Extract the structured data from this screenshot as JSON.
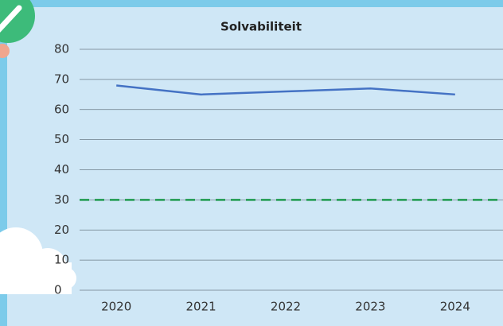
{
  "chart_data": {
    "type": "line",
    "title": "Solvabiliteit",
    "categories": [
      "2020",
      "2021",
      "2022",
      "2023",
      "2024"
    ],
    "series": [
      {
        "name": "Solvabiliteit",
        "color": "#4472c4",
        "values": [
          68,
          65,
          66,
          67,
          65
        ]
      }
    ],
    "reference_line": {
      "value": 30,
      "color": "#1e9a4e",
      "dashed": true
    },
    "ylim": [
      0,
      80
    ],
    "yticks": [
      0,
      10,
      20,
      30,
      40,
      50,
      60,
      70,
      80
    ],
    "grid": true
  }
}
